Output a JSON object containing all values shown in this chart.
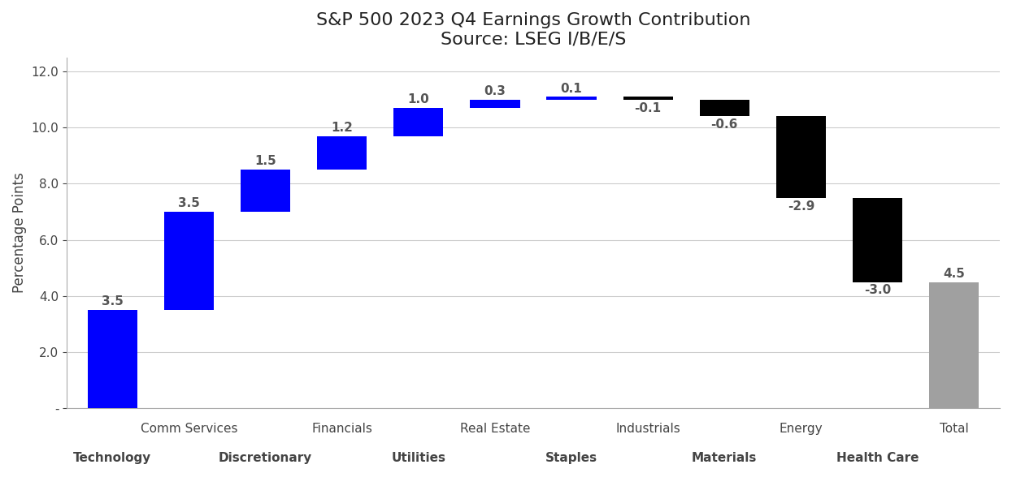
{
  "title": "S&P 500 2023 Q4 Earnings Growth Contribution",
  "subtitle": "Source: LSEG I/B/E/S",
  "ylabel": "Percentage Points",
  "values": [
    3.5,
    3.5,
    1.5,
    1.2,
    1.0,
    0.3,
    0.1,
    -0.1,
    -0.6,
    -2.9,
    -3.0,
    4.5
  ],
  "colors": [
    "#0000FF",
    "#0000FF",
    "#0000FF",
    "#0000FF",
    "#0000FF",
    "#0000FF",
    "#0000FF",
    "#000000",
    "#000000",
    "#000000",
    "#000000",
    "#A0A0A0"
  ],
  "label_values": [
    "3.5",
    "3.5",
    "1.5",
    "1.2",
    "1.0",
    "0.3",
    "0.1",
    "-0.1",
    "-0.6",
    "-2.9",
    "-3.0",
    "4.5"
  ],
  "top_labels": [
    "",
    "Comm Services",
    "",
    "Financials",
    "",
    "Real Estate",
    "",
    "Industrials",
    "",
    "Energy",
    "",
    "Total"
  ],
  "bottom_labels": [
    "Technology",
    "",
    "Discretionary",
    "",
    "Utilities",
    "",
    "Staples",
    "",
    "Materials",
    "",
    "Health Care",
    ""
  ],
  "ylim_min": 0,
  "ylim_max": 12.5,
  "yticks": [
    0,
    2.0,
    4.0,
    6.0,
    8.0,
    10.0,
    12.0
  ],
  "ytick_labels": [
    "-",
    "2.0",
    "4.0",
    "6.0",
    "8.0",
    "10.0",
    "12.0"
  ],
  "background_color": "#FFFFFF",
  "grid_color": "#CCCCCC",
  "title_fontsize": 16,
  "label_fontsize": 11,
  "axis_label_fontsize": 12,
  "tick_fontsize": 11
}
